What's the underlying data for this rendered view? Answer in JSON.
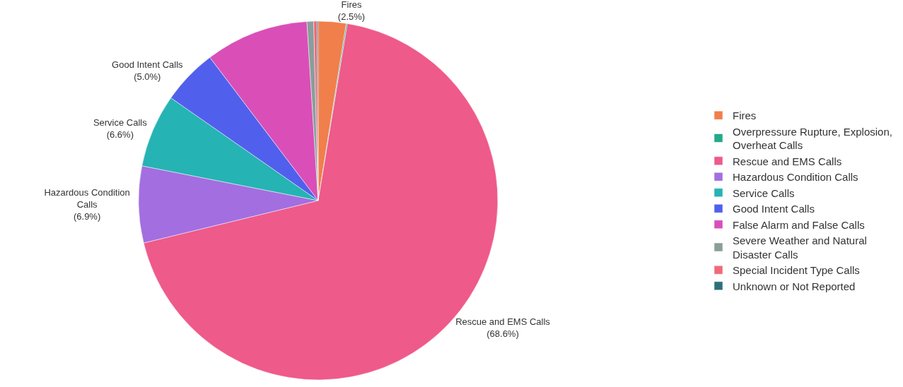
{
  "chart_data": {
    "type": "pie",
    "categories": [
      "Fires",
      "Overpressure Rupture, Explosion, Overheat Calls",
      "Rescue and EMS Calls",
      "Hazardous Condition Calls",
      "Service Calls",
      "Good Intent Calls",
      "False Alarm and False Calls",
      "Severe Weather and Natural Disaster Calls",
      "Special Incident Type Calls",
      "Unknown or Not Reported"
    ],
    "values": [
      2.5,
      0.1,
      68.6,
      6.9,
      6.6,
      5.0,
      9.3,
      0.6,
      0.3,
      0.1
    ],
    "value_labels": [
      "(2.5%)",
      null,
      "(68.6%)",
      "(6.9%)",
      "(6.6%)",
      "(5.0%)",
      null,
      null,
      null,
      null
    ],
    "colors": [
      "#f07f4b",
      "#26a88a",
      "#ee5a8a",
      "#a36ee0",
      "#26b3b3",
      "#5060ec",
      "#d94fb7",
      "#8a9e9a",
      "#f06a78",
      "#2f6f7a"
    ],
    "legend": "right"
  }
}
